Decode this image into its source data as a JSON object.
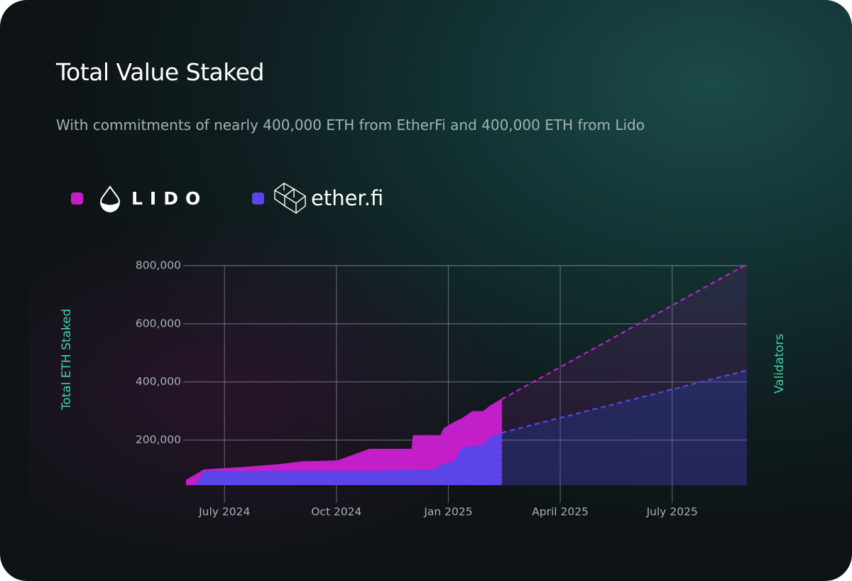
{
  "chart_data": {
    "type": "area",
    "title": "Total Value Staked",
    "subtitle": "With commitments of nearly 400,000 ETH from EtherFi and 400,000 ETH from Lido",
    "y_label": "Total ETH Staked",
    "y2_label": "Validators",
    "stacked": true,
    "x": [
      2024.414,
      2024.454,
      2024.49,
      2024.546,
      2024.625,
      2024.673,
      2024.752,
      2024.824,
      2024.919,
      2024.922,
      2024.967,
      2024.983,
      2024.99,
      2025.014,
      2025.03,
      2025.054,
      2025.078,
      2025.094,
      2025.119
    ],
    "projection_x": [
      2025.119,
      2025.667
    ],
    "series": [
      {
        "name": "ether.fi",
        "color": "#5b44e8",
        "values": [
          0,
          93000,
          95000,
          95000,
          95000,
          95000,
          95000,
          95000,
          97000,
          97000,
          100000,
          115000,
          118000,
          130000,
          175000,
          180000,
          185000,
          212000,
          225000
        ],
        "projection": [
          225000,
          440000
        ]
      },
      {
        "name": "LIDO",
        "color": "#c21fc8",
        "values": [
          61000,
          4000,
          6000,
          11000,
          21000,
          30000,
          33000,
          73000,
          71000,
          118000,
          115000,
          100000,
          121000,
          131000,
          98000,
          118000,
          113000,
          105000,
          115000
        ],
        "projection": [
          115000,
          365000
        ]
      }
    ],
    "xlim": [
      2024.414,
      2025.667
    ],
    "xticks": [
      {
        "value": 2024.5,
        "label": "July 2024"
      },
      {
        "value": 2024.75,
        "label": "Oct 2024"
      },
      {
        "value": 2025.0,
        "label": "Jan 2025"
      },
      {
        "value": 2025.25,
        "label": "April 2025"
      },
      {
        "value": 2025.5,
        "label": "July 2025"
      }
    ],
    "ylim": [
      45000,
      800000
    ],
    "yticks": [
      {
        "value": 200000,
        "label": "200,000"
      },
      {
        "value": 400000,
        "label": "400,000"
      },
      {
        "value": 600000,
        "label": "600,000"
      },
      {
        "value": 800000,
        "label": "800,000"
      }
    ],
    "grid": true
  }
}
